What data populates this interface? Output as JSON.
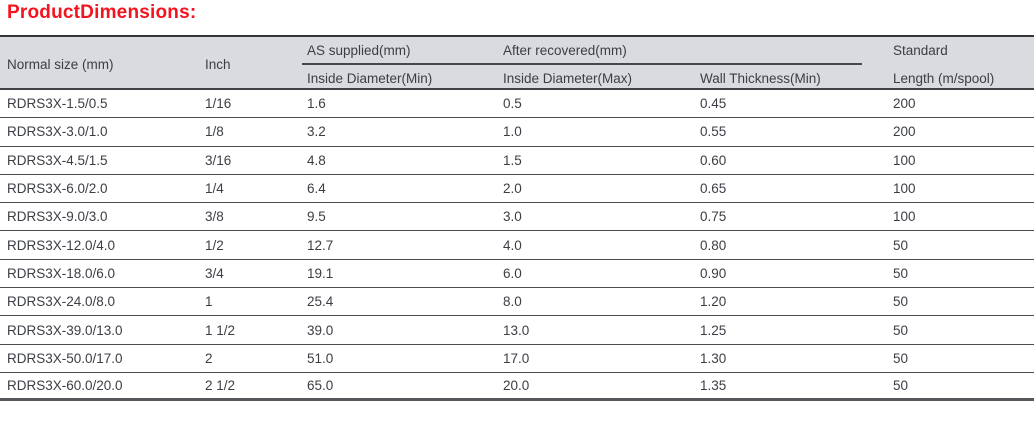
{
  "title": "ProductDimensions:",
  "colors": {
    "title_red": "#f2141e",
    "header_bg": "#d9dbde",
    "text": "#3b3e44",
    "border_dark": "#333538",
    "row_border": "#4a4c4f"
  },
  "table": {
    "header": {
      "normal_size": "Normal size (mm)",
      "inch": "Inch",
      "as_supplied_group": "AS supplied(mm)",
      "as_supplied_sub": "Inside Diameter(Min)",
      "after_recovered_group": "After recovered(mm)",
      "after_recovered_sub1": "Inside Diameter(Max)",
      "after_recovered_sub2": "Wall Thickness(Min)",
      "standard_line1": "Standard",
      "standard_line2": "Length (m/spool)"
    },
    "column_keys": [
      "model",
      "inch",
      "inside_diameter_min",
      "inside_diameter_max",
      "wall_thickness_min",
      "standard_length"
    ],
    "rows": [
      {
        "model": "RDRS3X-1.5/0.5",
        "inch": "1/16",
        "inside_diameter_min": "1.6",
        "inside_diameter_max": "0.5",
        "wall_thickness_min": "0.45",
        "standard_length": "200"
      },
      {
        "model": "RDRS3X-3.0/1.0",
        "inch": "1/8",
        "inside_diameter_min": "3.2",
        "inside_diameter_max": "1.0",
        "wall_thickness_min": "0.55",
        "standard_length": "200"
      },
      {
        "model": "RDRS3X-4.5/1.5",
        "inch": "3/16",
        "inside_diameter_min": "4.8",
        "inside_diameter_max": "1.5",
        "wall_thickness_min": "0.60",
        "standard_length": "100"
      },
      {
        "model": "RDRS3X-6.0/2.0",
        "inch": "1/4",
        "inside_diameter_min": "6.4",
        "inside_diameter_max": "2.0",
        "wall_thickness_min": "0.65",
        "standard_length": "100"
      },
      {
        "model": "RDRS3X-9.0/3.0",
        "inch": "3/8",
        "inside_diameter_min": "9.5",
        "inside_diameter_max": "3.0",
        "wall_thickness_min": "0.75",
        "standard_length": "100"
      },
      {
        "model": "RDRS3X-12.0/4.0",
        "inch": "1/2",
        "inside_diameter_min": "12.7",
        "inside_diameter_max": "4.0",
        "wall_thickness_min": "0.80",
        "standard_length": "50"
      },
      {
        "model": "RDRS3X-18.0/6.0",
        "inch": "3/4",
        "inside_diameter_min": "19.1",
        "inside_diameter_max": "6.0",
        "wall_thickness_min": "0.90",
        "standard_length": "50"
      },
      {
        "model": "RDRS3X-24.0/8.0",
        "inch": "1",
        "inside_diameter_min": "25.4",
        "inside_diameter_max": "8.0",
        "wall_thickness_min": "1.20",
        "standard_length": "50"
      },
      {
        "model": "RDRS3X-39.0/13.0",
        "inch": "1 1/2",
        "inside_diameter_min": "39.0",
        "inside_diameter_max": "13.0",
        "wall_thickness_min": "1.25",
        "standard_length": "50"
      },
      {
        "model": "RDRS3X-50.0/17.0",
        "inch": "2",
        "inside_diameter_min": "51.0",
        "inside_diameter_max": "17.0",
        "wall_thickness_min": "1.30",
        "standard_length": "50"
      },
      {
        "model": "RDRS3X-60.0/20.0",
        "inch": "2 1/2",
        "inside_diameter_min": "65.0",
        "inside_diameter_max": "20.0",
        "wall_thickness_min": "1.35",
        "standard_length": "50"
      }
    ]
  }
}
